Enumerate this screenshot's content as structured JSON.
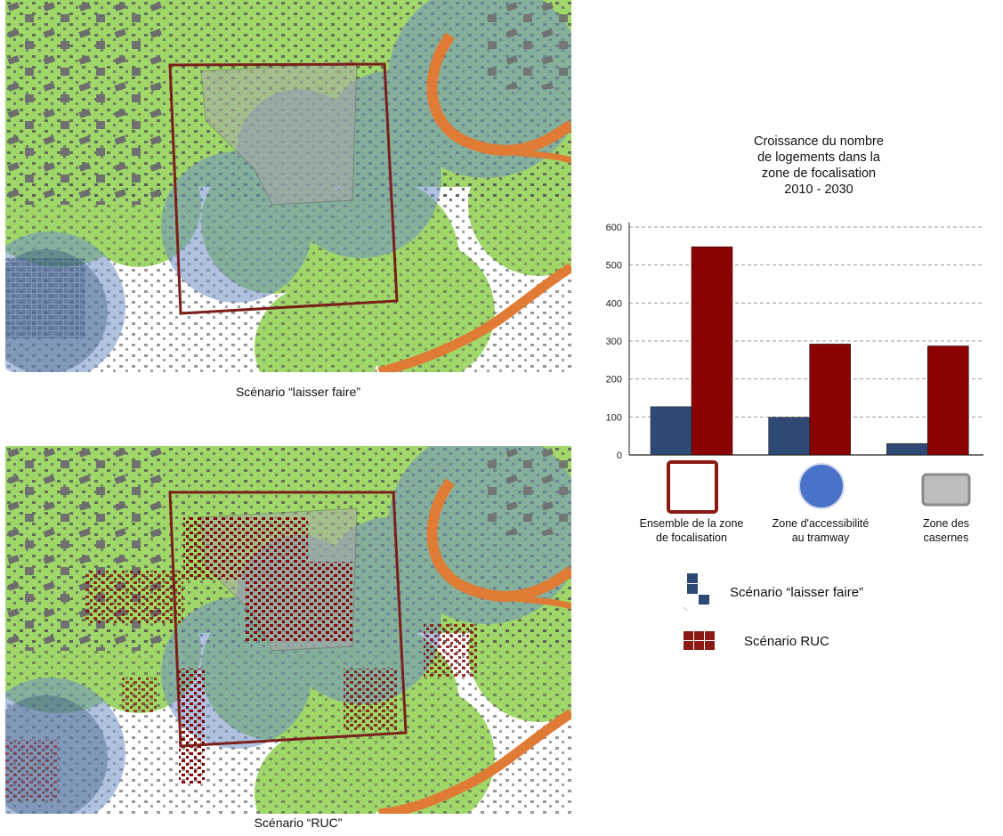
{
  "captions": {
    "top": "Scénario “laisser faire”",
    "bottom": "Scénario “RUC”"
  },
  "colors": {
    "laisser_faire": "#2e4a74",
    "ruc": "#8b0000",
    "green_zone": "#8fd14f",
    "blue_zone": "#6f8fc4",
    "river": "#e07b35",
    "focus_frame": "#7a1f1a"
  },
  "chart_data": {
    "type": "bar",
    "title": "Croissance du nombre de logements dans la zone de focalisation 2010 - 2030",
    "title_lines": [
      "Croissance du nombre",
      "de logements dans la",
      "zone de focalisation",
      "2010 - 2030"
    ],
    "categories": [
      "Ensemble de la zone de focalisation",
      "Zone d'accessibilité au tramway",
      "Zone des casernes"
    ],
    "category_lines": [
      [
        "Ensemble de la zone",
        "de focalisation"
      ],
      [
        "Zone d'accessibilité",
        "au tramway"
      ],
      [
        "Zone des",
        "casernes"
      ]
    ],
    "category_icons": [
      "red-square-outline-icon",
      "blue-circle-icon",
      "gray-rounded-square-icon"
    ],
    "series": [
      {
        "name": "Scénario “laisser faire”",
        "values": [
          127,
          99,
          30
        ],
        "color": "#2e4a74"
      },
      {
        "name": "Scénario RUC",
        "values": [
          548,
          292,
          287
        ],
        "color": "#8b0000"
      }
    ],
    "yticks": [
      0,
      100,
      200,
      300,
      400,
      500,
      600
    ],
    "ylim": [
      0,
      600
    ],
    "grid": true,
    "legend_position": "bottom"
  }
}
